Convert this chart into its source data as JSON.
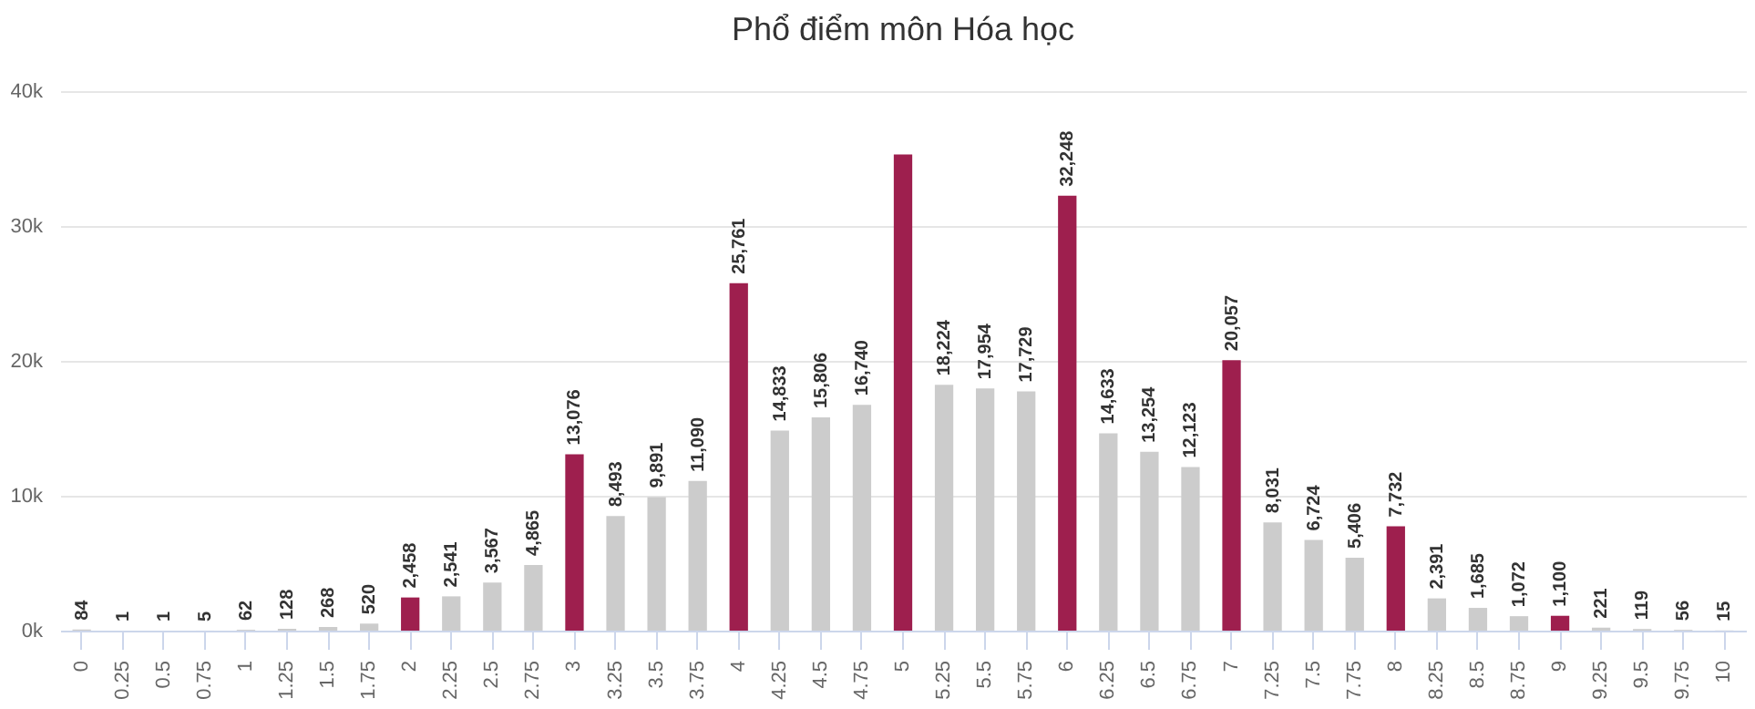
{
  "chart_data": {
    "type": "bar",
    "title": "Phổ điểm môn Hóa học",
    "categories": [
      "0",
      "0.25",
      "0.5",
      "0.75",
      "1",
      "1.25",
      "1.5",
      "1.75",
      "2",
      "2.25",
      "2.5",
      "2.75",
      "3",
      "3.25",
      "3.5",
      "3.75",
      "4",
      "4.25",
      "4.5",
      "4.75",
      "5",
      "5.25",
      "5.5",
      "5.75",
      "6",
      "6.25",
      "6.5",
      "6.75",
      "7",
      "7.25",
      "7.5",
      "7.75",
      "8",
      "8.25",
      "8.5",
      "8.75",
      "9",
      "9.25",
      "9.5",
      "9.75",
      "10"
    ],
    "values": [
      84,
      1,
      1,
      5,
      62,
      128,
      268,
      520,
      2458,
      2541,
      3567,
      4865,
      13076,
      8493,
      9891,
      11090,
      25761,
      14833,
      15806,
      16740,
      35300,
      18224,
      17954,
      17729,
      32248,
      14633,
      13254,
      12123,
      20057,
      8031,
      6724,
      5406,
      7732,
      2391,
      1685,
      1072,
      1100,
      221,
      119,
      56,
      15
    ],
    "value_labels": [
      "84",
      "1",
      "1",
      "5",
      "62",
      "128",
      "268",
      "520",
      "2,458",
      "2,541",
      "3,567",
      "4,865",
      "13,076",
      "8,493",
      "9,891",
      "11,090",
      "25,761",
      "14,833",
      "15,806",
      "16,740",
      null,
      "18,224",
      "17,954",
      "17,729",
      "32,248",
      "14,633",
      "13,254",
      "12,123",
      "20,057",
      "8,031",
      "6,724",
      "5,406",
      "7,732",
      "2,391",
      "1,685",
      "1,072",
      "1,100",
      "221",
      "119",
      "56",
      "15"
    ],
    "colors": [
      "#cccccc",
      "#cccccc",
      "#cccccc",
      "#cccccc",
      "#cccccc",
      "#cccccc",
      "#cccccc",
      "#cccccc",
      "#9e1f4e",
      "#cccccc",
      "#cccccc",
      "#cccccc",
      "#9e1f4e",
      "#cccccc",
      "#cccccc",
      "#cccccc",
      "#9e1f4e",
      "#cccccc",
      "#cccccc",
      "#cccccc",
      "#9e1f4e",
      "#cccccc",
      "#cccccc",
      "#cccccc",
      "#9e1f4e",
      "#cccccc",
      "#cccccc",
      "#cccccc",
      "#9e1f4e",
      "#cccccc",
      "#cccccc",
      "#cccccc",
      "#9e1f4e",
      "#cccccc",
      "#cccccc",
      "#cccccc",
      "#9e1f4e",
      "#cccccc",
      "#cccccc",
      "#cccccc",
      "#cccccc"
    ],
    "ylim": [
      0,
      40000
    ],
    "yticks": [
      {
        "value": 0,
        "label": "0k"
      },
      {
        "value": 10000,
        "label": "10k"
      },
      {
        "value": 20000,
        "label": "20k"
      },
      {
        "value": 30000,
        "label": "30k"
      },
      {
        "value": 40000,
        "label": "40k"
      }
    ],
    "grid": "y"
  }
}
